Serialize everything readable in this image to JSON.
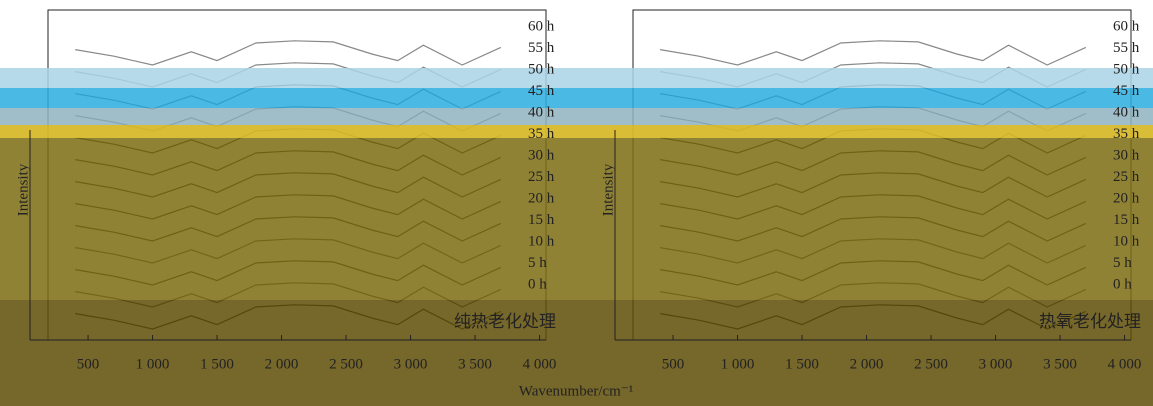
{
  "chart_data": [
    {
      "type": "line",
      "title": "纯热老化处理",
      "ylabel": "Intensity",
      "xlabel": "Wavenumber/cm⁻¹",
      "x": [
        400,
        700,
        1000,
        1300,
        1500,
        1800,
        2100,
        2400,
        2700,
        2900,
        3100,
        3400,
        3700
      ],
      "xlim": [
        50,
        4050
      ],
      "ylim": [
        -1,
        14
      ],
      "xticks": [
        500,
        {
          "value": 1000,
          "label": "1 000"
        },
        {
          "value": 1500,
          "label": "1 500"
        },
        {
          "value": 2000,
          "label": "2 000"
        },
        {
          "value": 2500,
          "label": "2 500"
        },
        {
          "value": 3000,
          "label": "3 000"
        },
        {
          "value": 3500,
          "label": "3 500"
        },
        {
          "value": 4000,
          "label": "4 000"
        }
      ],
      "series": [
        {
          "name": "60 h",
          "color": "#888888",
          "values": [
            12.2,
            11.9,
            11.5,
            12.1,
            11.7,
            12.5,
            12.6,
            12.55,
            12,
            11.7,
            12.4,
            11.5,
            12.3
          ]
        },
        {
          "name": "55 h",
          "color": "#888888",
          "values": [
            11.2,
            10.9,
            10.5,
            11.1,
            10.7,
            11.5,
            11.6,
            11.55,
            11,
            10.7,
            11.4,
            10.5,
            11.3
          ]
        },
        {
          "name": "50 h",
          "color": "#555555",
          "values": [
            10.2,
            9.9,
            9.5,
            10.1,
            9.7,
            10.5,
            10.6,
            10.55,
            10,
            9.7,
            10.4,
            9.5,
            10.3
          ]
        },
        {
          "name": "45 h",
          "color": "#555555",
          "values": [
            9.2,
            8.9,
            8.5,
            9.1,
            8.7,
            9.5,
            9.6,
            9.55,
            9,
            8.7,
            9.4,
            8.5,
            9.3
          ]
        },
        {
          "name": "40 h",
          "color": "#222222",
          "values": [
            8.2,
            7.9,
            7.5,
            8.1,
            7.7,
            8.5,
            8.6,
            8.55,
            8,
            7.7,
            8.4,
            7.5,
            8.3
          ]
        },
        {
          "name": "35 h",
          "color": "#222222",
          "values": [
            7.2,
            6.9,
            6.5,
            7.1,
            6.7,
            7.5,
            7.6,
            7.55,
            7,
            6.7,
            7.4,
            6.5,
            7.3
          ]
        },
        {
          "name": "30 h",
          "color": "#222222",
          "values": [
            6.2,
            5.9,
            5.5,
            6.1,
            5.7,
            6.5,
            6.6,
            6.55,
            6,
            5.7,
            6.4,
            5.5,
            6.3
          ]
        },
        {
          "name": "25 h",
          "color": "#222222",
          "values": [
            5.2,
            4.9,
            4.5,
            5.1,
            4.7,
            5.5,
            5.6,
            5.55,
            5,
            4.7,
            5.4,
            4.5,
            5.3
          ]
        },
        {
          "name": "20 h",
          "color": "#222222",
          "values": [
            4.2,
            3.9,
            3.5,
            4.1,
            3.7,
            4.5,
            4.6,
            4.55,
            4,
            3.7,
            4.4,
            3.5,
            4.3
          ]
        },
        {
          "name": "15 h",
          "color": "#444444",
          "values": [
            3.2,
            2.9,
            2.5,
            3.1,
            2.7,
            3.5,
            3.6,
            3.55,
            3,
            2.7,
            3.4,
            2.5,
            3.3
          ]
        },
        {
          "name": "10 h",
          "color": "#222222",
          "values": [
            2.2,
            1.9,
            1.5,
            2.1,
            1.7,
            2.5,
            2.6,
            2.55,
            2,
            1.7,
            2.4,
            1.5,
            2.3
          ]
        },
        {
          "name": "5 h",
          "color": "#444444",
          "values": [
            1.2,
            0.9,
            0.5,
            1.1,
            0.7,
            1.5,
            1.6,
            1.55,
            1,
            0.7,
            1.4,
            0.5,
            1.3
          ]
        },
        {
          "name": "0 h",
          "color": "#222222",
          "values": [
            0.2,
            -0.1,
            -0.5,
            0.1,
            -0.3,
            0.5,
            0.6,
            0.55,
            0,
            -0.3,
            0.4,
            -0.5,
            0.3
          ]
        }
      ]
    },
    {
      "type": "line",
      "title": "热氧老化处理",
      "ylabel": "Intensity",
      "x": [
        400,
        700,
        1000,
        1300,
        1500,
        1800,
        2100,
        2400,
        2700,
        2900,
        3100,
        3400,
        3700
      ],
      "xlim": [
        50,
        4050
      ],
      "ylim": [
        -1,
        14
      ],
      "xticks": [
        500,
        {
          "value": 1000,
          "label": "1 000"
        },
        {
          "value": 1500,
          "label": "1 500"
        },
        {
          "value": 2000,
          "label": "2 000"
        },
        {
          "value": 2500,
          "label": "2 500"
        },
        {
          "value": 3000,
          "label": "3 000"
        },
        {
          "value": 3500,
          "label": "3 500"
        },
        {
          "value": 4000,
          "label": "4 000"
        }
      ],
      "series": [
        {
          "name": "60 h",
          "color": "#888888",
          "values": [
            12.2,
            11.9,
            11.5,
            12.1,
            11.7,
            12.5,
            12.6,
            12.55,
            12,
            11.7,
            12.4,
            11.5,
            12.3
          ]
        },
        {
          "name": "55 h",
          "color": "#888888",
          "values": [
            11.2,
            10.9,
            10.5,
            11.1,
            10.7,
            11.5,
            11.6,
            11.55,
            11,
            10.7,
            11.4,
            10.5,
            11.3
          ]
        },
        {
          "name": "50 h",
          "color": "#555555",
          "values": [
            10.2,
            9.9,
            9.5,
            10.1,
            9.7,
            10.5,
            10.6,
            10.55,
            10,
            9.7,
            10.4,
            9.5,
            10.3
          ]
        },
        {
          "name": "45 h",
          "color": "#555555",
          "values": [
            9.2,
            8.9,
            8.5,
            9.1,
            8.7,
            9.5,
            9.6,
            9.55,
            9,
            8.7,
            9.4,
            8.5,
            9.3
          ]
        },
        {
          "name": "40 h",
          "color": "#222222",
          "values": [
            8.2,
            7.9,
            7.5,
            8.1,
            7.7,
            8.5,
            8.6,
            8.55,
            8,
            7.7,
            8.4,
            7.5,
            8.3
          ]
        },
        {
          "name": "35 h",
          "color": "#222222",
          "values": [
            7.2,
            6.9,
            6.5,
            7.1,
            6.7,
            7.5,
            7.6,
            7.55,
            7,
            6.7,
            7.4,
            6.5,
            7.3
          ]
        },
        {
          "name": "30 h",
          "color": "#222222",
          "values": [
            6.2,
            5.9,
            5.5,
            6.1,
            5.7,
            6.5,
            6.6,
            6.55,
            6,
            5.7,
            6.4,
            5.5,
            6.3
          ]
        },
        {
          "name": "25 h",
          "color": "#222222",
          "values": [
            5.2,
            4.9,
            4.5,
            5.1,
            4.7,
            5.5,
            5.6,
            5.55,
            5,
            4.7,
            5.4,
            4.5,
            5.3
          ]
        },
        {
          "name": "20 h",
          "color": "#222222",
          "values": [
            4.2,
            3.9,
            3.5,
            4.1,
            3.7,
            4.5,
            4.6,
            4.55,
            4,
            3.7,
            4.4,
            3.5,
            4.3
          ]
        },
        {
          "name": "15 h",
          "color": "#444444",
          "values": [
            3.2,
            2.9,
            2.5,
            3.1,
            2.7,
            3.5,
            3.6,
            3.55,
            3,
            2.7,
            3.4,
            2.5,
            3.3
          ]
        },
        {
          "name": "10 h",
          "color": "#222222",
          "values": [
            2.2,
            1.9,
            1.5,
            2.1,
            1.7,
            2.5,
            2.6,
            2.55,
            2,
            1.7,
            2.4,
            1.5,
            2.3
          ]
        },
        {
          "name": "5 h",
          "color": "#444444",
          "values": [
            1.2,
            0.9,
            0.5,
            1.1,
            0.7,
            1.5,
            1.6,
            1.55,
            1,
            0.7,
            1.4,
            0.5,
            1.3
          ]
        },
        {
          "name": "0 h",
          "color": "#222222",
          "values": [
            0.2,
            -0.1,
            -0.5,
            0.1,
            -0.3,
            0.5,
            0.6,
            0.55,
            0,
            -0.3,
            0.4,
            -0.5,
            0.3
          ]
        }
      ]
    }
  ]
}
